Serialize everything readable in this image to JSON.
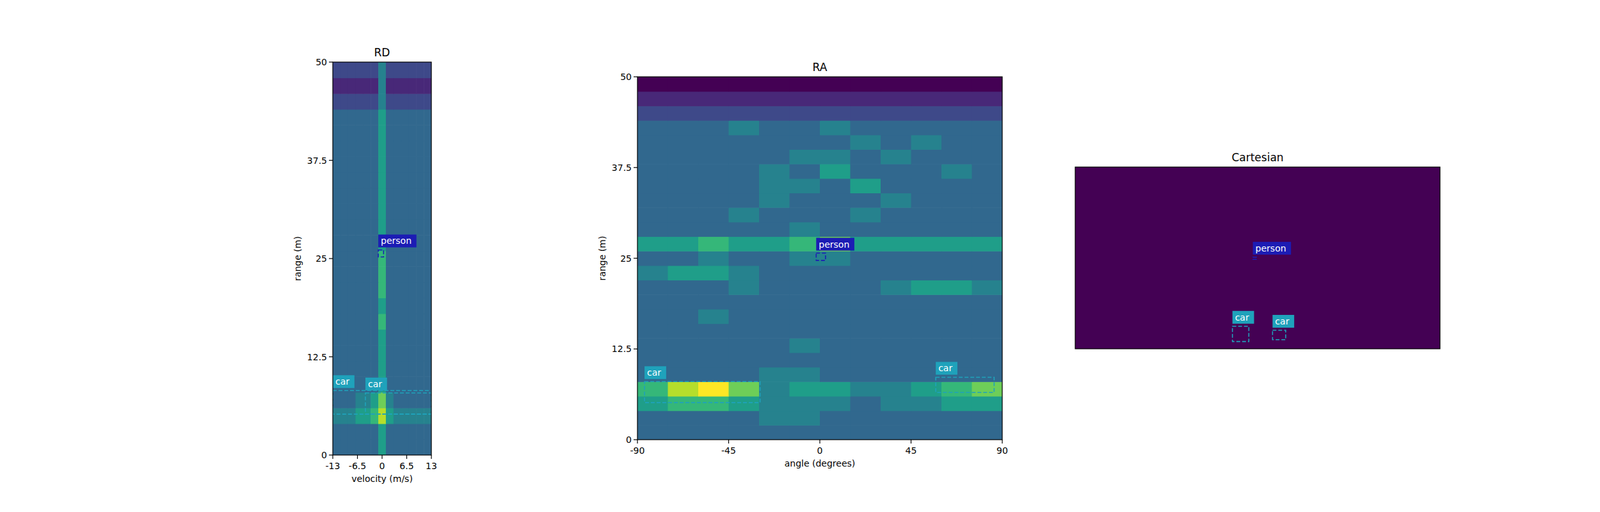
{
  "chart_data": [
    {
      "type": "heatmap",
      "title": "RD",
      "x_label": "velocity (m/s)",
      "y_label": "range (m)",
      "xlim": [
        -13,
        13
      ],
      "ylim": [
        0,
        50
      ],
      "xticks": [
        -13,
        -6.5,
        0,
        6.5,
        13
      ],
      "yticks": [
        0,
        12.5,
        25,
        37.5,
        50
      ],
      "clim": [
        0,
        9
      ],
      "cells": [
        [
          3,
          3,
          3,
          3,
          3,
          3,
          5,
          3,
          3,
          3,
          3,
          3,
          3
        ],
        [
          3,
          3,
          3,
          3,
          3,
          3,
          5,
          3,
          3,
          3,
          3,
          3,
          3
        ],
        [
          4,
          4,
          4,
          5,
          5,
          6,
          8,
          5,
          4,
          4,
          4,
          4,
          4
        ],
        [
          3,
          3,
          3,
          4,
          4,
          5,
          7,
          4,
          3,
          3,
          3,
          3,
          3
        ],
        [
          3,
          3,
          3,
          3,
          3,
          3,
          5,
          3,
          3,
          3,
          3,
          3,
          3
        ],
        [
          3,
          3,
          3,
          3,
          3,
          3,
          5,
          3,
          3,
          3,
          3,
          3,
          3
        ],
        [
          3,
          3,
          3,
          3,
          3,
          3,
          5,
          3,
          3,
          3,
          3,
          3,
          3
        ],
        [
          3,
          3,
          3,
          3,
          3,
          3,
          5,
          3,
          3,
          3,
          3,
          3,
          3
        ],
        [
          3,
          3,
          3,
          3,
          3,
          3,
          6,
          3,
          3,
          3,
          3,
          3,
          3
        ],
        [
          3,
          3,
          3,
          3,
          3,
          3,
          5,
          3,
          3,
          3,
          3,
          3,
          3
        ],
        [
          3,
          3,
          3,
          3,
          3,
          3,
          6,
          3,
          3,
          3,
          3,
          3,
          3
        ],
        [
          3,
          3,
          3,
          3,
          3,
          3,
          6,
          3,
          3,
          3,
          3,
          3,
          3
        ],
        [
          3,
          3,
          3,
          3,
          3,
          3,
          6,
          3,
          3,
          3,
          3,
          3,
          3
        ],
        [
          3,
          3,
          3,
          3,
          3,
          3,
          5,
          3,
          3,
          3,
          3,
          3,
          3
        ],
        [
          3,
          3,
          3,
          3,
          3,
          3,
          5,
          3,
          3,
          3,
          3,
          3,
          3
        ],
        [
          3,
          3,
          3,
          3,
          3,
          3,
          5,
          3,
          3,
          3,
          3,
          3,
          3
        ],
        [
          3,
          3,
          3,
          3,
          3,
          3,
          5,
          3,
          3,
          3,
          3,
          3,
          3
        ],
        [
          3,
          3,
          3,
          3,
          3,
          3,
          5,
          3,
          3,
          3,
          3,
          3,
          3
        ],
        [
          3,
          3,
          3,
          3,
          3,
          3,
          5,
          3,
          3,
          3,
          3,
          3,
          3
        ],
        [
          3,
          3,
          3,
          3,
          3,
          3,
          5,
          3,
          3,
          3,
          3,
          3,
          3
        ],
        [
          3,
          3,
          3,
          3,
          3,
          3,
          5,
          3,
          3,
          3,
          3,
          3,
          3
        ],
        [
          3,
          3,
          3,
          3,
          3,
          3,
          5,
          3,
          3,
          3,
          3,
          3,
          3
        ],
        [
          2,
          2,
          2,
          2,
          2,
          2,
          4,
          2,
          2,
          2,
          2,
          2,
          2
        ],
        [
          1,
          1,
          1,
          1,
          1,
          1,
          4,
          1,
          1,
          1,
          1,
          1,
          1
        ],
        [
          2,
          2,
          2,
          2,
          2,
          2,
          4,
          2,
          2,
          2,
          2,
          2,
          2
        ]
      ],
      "boxes": [
        {
          "label": "car",
          "x0": -13,
          "x1": 13,
          "y0": 5.2,
          "y1": 8.2,
          "color": "#1fa2bb"
        },
        {
          "label": "car",
          "x0": -4.4,
          "x1": 13,
          "y0": 5.2,
          "y1": 7.9,
          "color": "#1fa2bb"
        },
        {
          "label": "person",
          "x0": -1,
          "x1": 0.4,
          "y0": 25.2,
          "y1": 26.1,
          "color": "#1c1cb4"
        }
      ]
    },
    {
      "type": "heatmap",
      "title": "RA",
      "x_label": "angle (degrees)",
      "y_label": "range (m)",
      "xlim": [
        -90,
        90
      ],
      "ylim": [
        0,
        50
      ],
      "xticks": [
        -90,
        -45,
        0,
        45,
        90
      ],
      "yticks": [
        0,
        12.5,
        25,
        37.5,
        50
      ],
      "clim": [
        0,
        9
      ],
      "cells": [
        [
          3,
          3,
          3,
          3,
          3,
          3,
          3,
          3,
          3,
          3,
          3,
          3
        ],
        [
          3,
          3,
          3,
          3,
          4,
          4,
          3,
          3,
          3,
          3,
          3,
          3
        ],
        [
          5,
          6,
          6,
          5,
          4,
          4,
          4,
          3,
          4,
          4,
          5,
          5
        ],
        [
          6,
          8,
          9,
          7,
          4,
          5,
          5,
          4,
          4,
          5,
          6,
          7
        ],
        [
          3,
          3,
          3,
          3,
          4,
          4,
          3,
          3,
          3,
          3,
          3,
          3
        ],
        [
          3,
          3,
          3,
          3,
          3,
          3,
          3,
          3,
          3,
          3,
          3,
          3
        ],
        [
          3,
          3,
          3,
          3,
          3,
          4,
          3,
          3,
          3,
          3,
          3,
          3
        ],
        [
          3,
          3,
          3,
          3,
          3,
          3,
          3,
          3,
          3,
          3,
          3,
          3
        ],
        [
          3,
          3,
          4,
          3,
          3,
          3,
          3,
          3,
          3,
          3,
          3,
          3
        ],
        [
          3,
          3,
          3,
          3,
          3,
          3,
          3,
          3,
          3,
          3,
          3,
          3
        ],
        [
          3,
          3,
          3,
          4,
          3,
          3,
          3,
          3,
          4,
          5,
          5,
          4
        ],
        [
          4,
          5,
          5,
          4,
          3,
          3,
          3,
          3,
          3,
          3,
          3,
          3
        ],
        [
          3,
          3,
          4,
          3,
          3,
          4,
          4,
          3,
          3,
          3,
          3,
          3
        ],
        [
          5,
          5,
          6,
          5,
          5,
          6,
          7,
          5,
          5,
          5,
          5,
          5
        ],
        [
          3,
          3,
          3,
          3,
          3,
          4,
          3,
          3,
          3,
          3,
          3,
          3
        ],
        [
          3,
          3,
          3,
          4,
          3,
          3,
          3,
          4,
          3,
          3,
          3,
          3
        ],
        [
          3,
          3,
          3,
          3,
          4,
          3,
          3,
          3,
          4,
          3,
          3,
          3
        ],
        [
          3,
          3,
          3,
          3,
          4,
          4,
          3,
          5,
          3,
          3,
          3,
          3
        ],
        [
          3,
          3,
          3,
          3,
          4,
          3,
          5,
          3,
          3,
          3,
          4,
          3
        ],
        [
          3,
          3,
          3,
          3,
          3,
          4,
          4,
          3,
          4,
          3,
          3,
          3
        ],
        [
          3,
          3,
          3,
          3,
          3,
          3,
          3,
          4,
          3,
          4,
          3,
          3
        ],
        [
          3,
          3,
          3,
          4,
          3,
          3,
          4,
          3,
          3,
          3,
          3,
          3
        ],
        [
          2,
          2,
          2,
          2,
          2,
          2,
          2,
          2,
          2,
          2,
          2,
          2
        ],
        [
          1,
          1,
          1,
          1,
          1,
          1,
          1,
          1,
          1,
          1,
          1,
          1
        ],
        [
          0,
          0,
          0,
          0,
          0,
          0,
          0,
          0,
          0,
          0,
          0,
          0
        ]
      ],
      "boxes": [
        {
          "label": "car",
          "x0": -86.5,
          "x1": -29.5,
          "y0": 5.1,
          "y1": 8.0,
          "color": "#1fa2bb"
        },
        {
          "label": "car",
          "x0": 57.2,
          "x1": 86,
          "y0": 6.5,
          "y1": 8.6,
          "color": "#1fa2bb"
        },
        {
          "label": "person",
          "x0": -1.8,
          "x1": 2.8,
          "y0": 24.7,
          "y1": 25.7,
          "color": "#1c1cb4"
        }
      ]
    },
    {
      "type": "heatmap",
      "title": "Cartesian",
      "xlim": [
        -50,
        50
      ],
      "ylim": [
        0,
        50
      ],
      "tick_labels": false,
      "color": "#440154",
      "boxes": [
        {
          "label": "person",
          "x0": -1.3,
          "x1": -0.3,
          "y0": 24.6,
          "y1": 25.2,
          "color": "#1c1cb4"
        },
        {
          "label": "car",
          "x0": -6.9,
          "x1": -2.4,
          "y0": 2.0,
          "y1": 6.2,
          "color": "#1fa2bb"
        },
        {
          "label": "car",
          "x0": 4.1,
          "x1": 7.7,
          "y0": 2.5,
          "y1": 5.1,
          "color": "#1fa2bb"
        }
      ]
    }
  ]
}
